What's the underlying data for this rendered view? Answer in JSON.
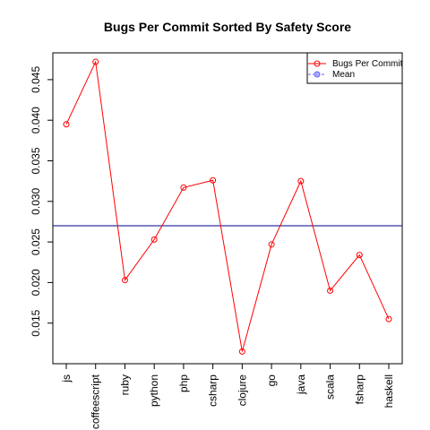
{
  "chart_data": {
    "type": "line",
    "title": "Bugs Per Commit Sorted By Safety Score",
    "xlabel": "",
    "ylabel": "",
    "categories": [
      "js",
      "coffeescript",
      "ruby",
      "python",
      "php",
      "csharp",
      "clojure",
      "go",
      "java",
      "scala",
      "fsharp",
      "haskell"
    ],
    "series": [
      {
        "name": "Bugs Per Commit",
        "values": [
          0.0395,
          0.0472,
          0.0203,
          0.0253,
          0.0317,
          0.0326,
          0.0115,
          0.0247,
          0.0325,
          0.019,
          0.0234,
          0.0155
        ],
        "color": "#ff0000"
      }
    ],
    "mean": {
      "name": "Mean",
      "value": 0.027,
      "color": "#00008b"
    },
    "yticks": [
      0.015,
      0.02,
      0.025,
      0.03,
      0.035,
      0.04,
      0.045
    ],
    "ytick_labels": [
      "0.015",
      "0.020",
      "0.025",
      "0.030",
      "0.035",
      "0.040",
      "0.045"
    ],
    "ylim": [
      0.01,
      0.0483
    ],
    "grid": false,
    "legend_position": "top-right"
  }
}
